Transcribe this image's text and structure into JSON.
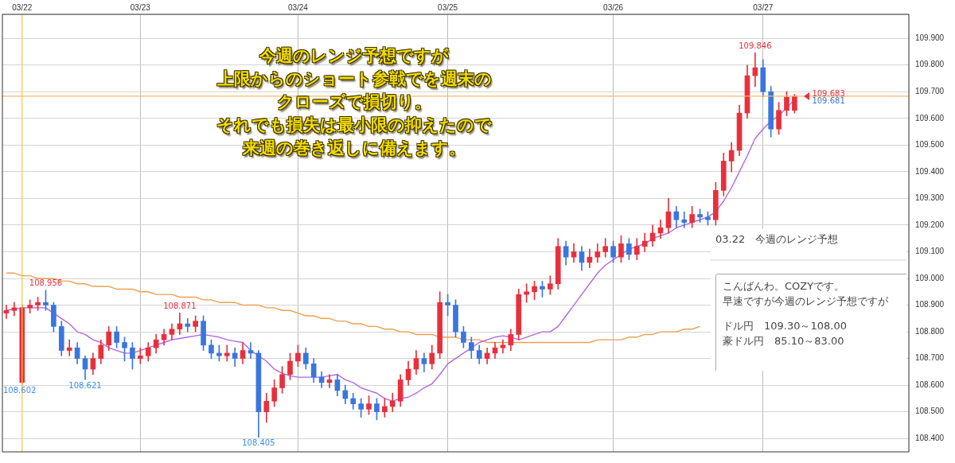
{
  "chart_data": {
    "type": "candlestick",
    "categories": [
      null,
      null,
      "03/22",
      null,
      null,
      null,
      null,
      null,
      null,
      null,
      null,
      null,
      null,
      null,
      null,
      null,
      null,
      "03/23",
      null,
      null,
      null,
      null,
      null,
      null,
      null,
      null,
      null,
      null,
      null,
      null,
      null,
      null,
      null,
      null,
      null,
      null,
      null,
      "03/24",
      null,
      null,
      null,
      null,
      null,
      null,
      null,
      null,
      null,
      null,
      null,
      null,
      null,
      null,
      null,
      null,
      null,
      null,
      "03/25",
      null,
      null,
      null,
      null,
      null,
      null,
      null,
      null,
      null,
      null,
      null,
      null,
      null,
      null,
      null,
      null,
      null,
      null,
      null,
      null,
      "03/26",
      null,
      null,
      null,
      null,
      null,
      null,
      null,
      null,
      null,
      null,
      null,
      null,
      null,
      null,
      null,
      null,
      null,
      null,
      "03/27",
      null,
      null,
      null,
      null,
      null,
      null,
      null,
      null,
      null,
      null,
      null,
      null,
      null,
      null,
      null,
      null,
      null,
      null
    ],
    "ohlc": [
      [
        108.87,
        108.9,
        108.85,
        108.88
      ],
      [
        108.88,
        108.91,
        108.86,
        108.89
      ],
      [
        108.61,
        108.9,
        108.602,
        108.89
      ],
      [
        108.89,
        108.92,
        108.87,
        108.9
      ],
      [
        108.9,
        108.93,
        108.88,
        108.91
      ],
      [
        108.91,
        108.956,
        108.88,
        108.9
      ],
      [
        108.9,
        108.91,
        108.8,
        108.82
      ],
      [
        108.82,
        108.84,
        108.71,
        108.73
      ],
      [
        108.73,
        108.77,
        108.71,
        108.74
      ],
      [
        108.74,
        108.76,
        108.68,
        108.7
      ],
      [
        108.7,
        108.71,
        108.621,
        108.66
      ],
      [
        108.66,
        108.72,
        108.64,
        108.7
      ],
      [
        108.7,
        108.77,
        108.68,
        108.75
      ],
      [
        108.75,
        108.82,
        108.73,
        108.8
      ],
      [
        108.8,
        108.82,
        108.74,
        108.76
      ],
      [
        108.76,
        108.78,
        108.69,
        108.74
      ],
      [
        108.74,
        108.76,
        108.66,
        108.7
      ],
      [
        108.7,
        108.74,
        108.68,
        108.71
      ],
      [
        108.71,
        108.76,
        108.69,
        108.74
      ],
      [
        108.74,
        108.79,
        108.72,
        108.77
      ],
      [
        108.77,
        108.81,
        108.75,
        108.79
      ],
      [
        108.79,
        108.83,
        108.77,
        108.81
      ],
      [
        108.81,
        108.871,
        108.79,
        108.83
      ],
      [
        108.83,
        108.85,
        108.8,
        108.82
      ],
      [
        108.82,
        108.86,
        108.8,
        108.84
      ],
      [
        108.84,
        108.86,
        108.73,
        108.75
      ],
      [
        108.75,
        108.77,
        108.7,
        108.72
      ],
      [
        108.72,
        108.75,
        108.69,
        108.71
      ],
      [
        108.71,
        108.75,
        108.69,
        108.72
      ],
      [
        108.72,
        108.74,
        108.67,
        108.7
      ],
      [
        108.7,
        108.76,
        108.68,
        108.73
      ],
      [
        108.73,
        108.76,
        108.7,
        108.72
      ],
      [
        108.72,
        108.73,
        108.405,
        108.5
      ],
      [
        108.5,
        108.57,
        108.46,
        108.54
      ],
      [
        108.54,
        108.62,
        108.52,
        108.59
      ],
      [
        108.59,
        108.67,
        108.57,
        108.64
      ],
      [
        108.64,
        108.72,
        108.62,
        108.69
      ],
      [
        108.69,
        108.75,
        108.67,
        108.72
      ],
      [
        108.72,
        108.74,
        108.66,
        108.68
      ],
      [
        108.68,
        108.7,
        108.61,
        108.63
      ],
      [
        108.63,
        108.65,
        108.59,
        108.61
      ],
      [
        108.61,
        108.64,
        108.59,
        108.62
      ],
      [
        108.62,
        108.64,
        108.56,
        108.58
      ],
      [
        108.58,
        108.6,
        108.53,
        108.55
      ],
      [
        108.55,
        108.57,
        108.51,
        108.53
      ],
      [
        108.53,
        108.55,
        108.48,
        108.51
      ],
      [
        108.51,
        108.56,
        108.49,
        108.53
      ],
      [
        108.53,
        108.55,
        108.47,
        108.5
      ],
      [
        108.5,
        108.55,
        108.48,
        108.52
      ],
      [
        108.52,
        108.57,
        108.5,
        108.54
      ],
      [
        108.54,
        108.64,
        108.52,
        108.62
      ],
      [
        108.62,
        108.69,
        108.6,
        108.66
      ],
      [
        108.66,
        108.73,
        108.64,
        108.7
      ],
      [
        108.7,
        108.72,
        108.65,
        108.68
      ],
      [
        108.68,
        108.75,
        108.66,
        108.72
      ],
      [
        108.72,
        108.95,
        108.7,
        108.91
      ],
      [
        108.91,
        108.94,
        108.86,
        108.9
      ],
      [
        108.9,
        108.92,
        108.78,
        108.8
      ],
      [
        108.8,
        108.82,
        108.74,
        108.76
      ],
      [
        108.76,
        108.78,
        108.7,
        108.73
      ],
      [
        108.73,
        108.75,
        108.68,
        108.7
      ],
      [
        108.7,
        108.74,
        108.68,
        108.72
      ],
      [
        108.72,
        108.76,
        108.7,
        108.74
      ],
      [
        108.74,
        108.77,
        108.72,
        108.75
      ],
      [
        108.75,
        108.81,
        108.73,
        108.79
      ],
      [
        108.79,
        108.96,
        108.77,
        108.94
      ],
      [
        108.94,
        108.98,
        108.91,
        108.95
      ],
      [
        108.95,
        108.99,
        108.92,
        108.97
      ],
      [
        108.97,
        108.99,
        108.93,
        108.96
      ],
      [
        108.96,
        109.01,
        108.94,
        108.98
      ],
      [
        108.98,
        109.15,
        108.96,
        109.12
      ],
      [
        109.12,
        109.14,
        109.05,
        109.08
      ],
      [
        109.08,
        109.13,
        109.06,
        109.1
      ],
      [
        109.1,
        109.12,
        109.03,
        109.06
      ],
      [
        109.06,
        109.11,
        109.04,
        109.08
      ],
      [
        109.08,
        109.13,
        109.06,
        109.1
      ],
      [
        109.1,
        109.15,
        109.08,
        109.12
      ],
      [
        109.12,
        109.14,
        109.06,
        109.08
      ],
      [
        109.08,
        109.16,
        109.06,
        109.13
      ],
      [
        109.13,
        109.15,
        109.07,
        109.09
      ],
      [
        109.09,
        109.15,
        109.07,
        109.12
      ],
      [
        109.12,
        109.17,
        109.1,
        109.14
      ],
      [
        109.14,
        109.2,
        109.12,
        109.17
      ],
      [
        109.17,
        109.22,
        109.15,
        109.19
      ],
      [
        109.19,
        109.3,
        109.17,
        109.25
      ],
      [
        109.25,
        109.27,
        109.19,
        109.22
      ],
      [
        109.22,
        109.25,
        109.19,
        109.21
      ],
      [
        109.21,
        109.27,
        109.19,
        109.24
      ],
      [
        109.24,
        109.26,
        109.21,
        109.23
      ],
      [
        109.23,
        109.25,
        109.2,
        109.22
      ],
      [
        109.22,
        109.36,
        109.2,
        109.33
      ],
      [
        109.33,
        109.47,
        109.31,
        109.44
      ],
      [
        109.44,
        109.51,
        109.4,
        109.48
      ],
      [
        109.48,
        109.65,
        109.46,
        109.62
      ],
      [
        109.62,
        109.8,
        109.6,
        109.76
      ],
      [
        109.76,
        109.846,
        109.72,
        109.79
      ],
      [
        109.79,
        109.82,
        109.68,
        109.7
      ],
      [
        109.7,
        109.72,
        109.53,
        109.56
      ],
      [
        109.56,
        109.66,
        109.54,
        109.63
      ],
      [
        109.63,
        109.7,
        109.61,
        109.68
      ],
      [
        109.63,
        109.69,
        109.62,
        109.683
      ],
      null,
      null,
      null,
      null,
      null,
      null,
      null,
      null,
      null,
      null,
      null,
      null,
      null,
      null
    ],
    "colors": [
      "#e8303c",
      "#e8303c",
      "#e8303c",
      "#e8303c",
      "#e8303c",
      "#3a76de",
      "#3a76de",
      "#3a76de",
      "#e8303c",
      "#3a76de",
      "#3a76de",
      "#e8303c",
      "#e8303c",
      "#e8303c",
      "#3a76de",
      "#3a76de",
      "#3a76de",
      "#e8303c",
      "#e8303c",
      "#e8303c",
      "#e8303c",
      "#e8303c",
      "#e8303c",
      "#3a76de",
      "#e8303c",
      "#3a76de",
      "#3a76de",
      "#3a76de",
      "#e8303c",
      "#3a76de",
      "#e8303c",
      "#3a76de",
      "#3a76de",
      "#e8303c",
      "#e8303c",
      "#e8303c",
      "#e8303c",
      "#e8303c",
      "#3a76de",
      "#3a76de",
      "#3a76de",
      "#e8303c",
      "#3a76de",
      "#3a76de",
      "#3a76de",
      "#3a76de",
      "#e8303c",
      "#3a76de",
      "#e8303c",
      "#e8303c",
      "#e8303c",
      "#e8303c",
      "#e8303c",
      "#3a76de",
      "#e8303c",
      "#e8303c",
      "#3a76de",
      "#3a76de",
      "#3a76de",
      "#3a76de",
      "#3a76de",
      "#e8303c",
      "#e8303c",
      "#e8303c",
      "#e8303c",
      "#e8303c",
      "#e8303c",
      "#e8303c",
      "#3a76de",
      "#e8303c",
      "#e8303c",
      "#3a76de",
      "#e8303c",
      "#3a76de",
      "#e8303c",
      "#e8303c",
      "#e8303c",
      "#3a76de",
      "#e8303c",
      "#3a76de",
      "#e8303c",
      "#e8303c",
      "#e8303c",
      "#e8303c",
      "#e8303c",
      "#3a76de",
      "#3a76de",
      "#e8303c",
      "#3a76de",
      "#3a76de",
      "#e8303c",
      "#e8303c",
      "#e8303c",
      "#e8303c",
      "#e8303c",
      "#e8303c",
      "#3a76de",
      "#3a76de",
      "#e8303c",
      "#e8303c",
      "#e8303c",
      null,
      null,
      null,
      null,
      null,
      null,
      null,
      null,
      null,
      null,
      null,
      null,
      null,
      null
    ],
    "series": [
      {
        "type": "line",
        "color": "#b366e0",
        "values": [
          108.88,
          108.885,
          108.89,
          108.89,
          108.89,
          108.89,
          108.87,
          108.85,
          108.83,
          108.8,
          108.79,
          108.77,
          108.76,
          108.74,
          108.73,
          108.72,
          108.72,
          108.73,
          108.74,
          108.75,
          108.76,
          108.77,
          108.775,
          108.78,
          108.785,
          108.79,
          108.785,
          108.78,
          108.77,
          108.765,
          108.76,
          108.73,
          108.71,
          108.69,
          108.66,
          108.645,
          108.635,
          108.63,
          108.63,
          108.63,
          108.63,
          108.635,
          108.64,
          108.62,
          108.61,
          108.59,
          108.58,
          108.57,
          108.55,
          108.54,
          108.55,
          108.555,
          108.57,
          108.59,
          108.605,
          108.64,
          108.68,
          108.7,
          108.72,
          108.74,
          108.76,
          108.77,
          108.78,
          108.785,
          108.78,
          108.77,
          108.78,
          108.79,
          108.8,
          108.8,
          108.82,
          108.86,
          108.9,
          108.94,
          108.98,
          109.02,
          109.05,
          109.07,
          109.09,
          109.11,
          109.12,
          109.13,
          109.15,
          109.16,
          109.17,
          109.19,
          109.2,
          109.21,
          109.22,
          109.23,
          109.25,
          109.29,
          109.34,
          109.4,
          109.46,
          109.525,
          109.56,
          109.59,
          109.61,
          109.64,
          109.67,
          null,
          null,
          null,
          null,
          null,
          null,
          null,
          null,
          null,
          null,
          null,
          null,
          null,
          null
        ]
      },
      {
        "type": "line",
        "color": "#f0a050",
        "values": [
          109.02,
          109.02,
          109.01,
          109.01,
          109.0,
          109.0,
          109.0,
          108.99,
          108.99,
          108.98,
          108.98,
          108.97,
          108.97,
          108.97,
          108.96,
          108.96,
          108.96,
          108.95,
          108.95,
          108.94,
          108.94,
          108.94,
          108.93,
          108.93,
          108.93,
          108.92,
          108.92,
          108.91,
          108.91,
          108.91,
          108.9,
          108.9,
          108.9,
          108.89,
          108.89,
          108.88,
          108.88,
          108.87,
          108.86,
          108.86,
          108.85,
          108.85,
          108.84,
          108.84,
          108.83,
          108.83,
          108.82,
          108.82,
          108.81,
          108.81,
          108.8,
          108.8,
          108.79,
          108.79,
          108.79,
          108.78,
          108.78,
          108.78,
          108.77,
          108.77,
          108.77,
          108.76,
          108.76,
          108.76,
          108.76,
          108.76,
          108.76,
          108.76,
          108.76,
          108.76,
          108.76,
          108.76,
          108.76,
          108.76,
          108.76,
          108.77,
          108.77,
          108.77,
          108.77,
          108.78,
          108.78,
          108.79,
          108.79,
          108.8,
          108.8,
          108.8,
          108.81,
          108.81,
          108.82,
          null,
          null,
          null,
          null,
          null,
          null,
          null,
          null,
          null,
          null,
          null,
          null,
          null,
          null,
          null,
          null,
          null,
          null,
          null,
          null,
          null,
          null,
          null,
          null,
          null,
          null
        ]
      }
    ],
    "ylim": [
      108.35,
      109.99
    ],
    "yticks": [
      {
        "value": 108.4,
        "label": "108.400"
      },
      {
        "value": 108.5,
        "label": "108.500"
      },
      {
        "value": 108.6,
        "label": "108.600"
      },
      {
        "value": 108.7,
        "label": "108.700"
      },
      {
        "value": 108.8,
        "label": "108.800"
      },
      {
        "value": 108.9,
        "label": "108.900"
      },
      {
        "value": 109.0,
        "label": "109.000"
      },
      {
        "value": 109.1,
        "label": "109.100"
      },
      {
        "value": 109.2,
        "label": "109.200"
      },
      {
        "value": 109.3,
        "label": "109.300"
      },
      {
        "value": 109.4,
        "label": "109.400"
      },
      {
        "value": 109.5,
        "label": "109.500"
      },
      {
        "value": 109.6,
        "label": "109.600"
      },
      {
        "value": 109.7,
        "label": "109.700"
      },
      {
        "value": 109.8,
        "label": "109.800"
      },
      {
        "value": 109.9,
        "label": "109.900"
      }
    ],
    "grid": true,
    "legend": false,
    "marker": "none",
    "ref_lines": [
      {
        "axis": "y",
        "value": 109.683,
        "label": "109.683",
        "color": "#f5b86a"
      },
      {
        "axis": "x",
        "value": "03/22",
        "color": "#f6d040"
      }
    ],
    "annotations": [
      "今週のレンジ予想ですが",
      "上限からのショート参戦でを週末の",
      "クローズで損切り。",
      "それでも損失は最小限の抑えたので",
      "来週の巻き返しに備えます。",
      "03.22　今週のレンジ予想",
      "こんばんわ。COZYです。",
      "早速ですが今週のレンジ予想ですが",
      "ドル円　109.30～108.00",
      "豪ドル円　85.10～83.00",
      {
        "text": "108.956",
        "y": 108.956
      },
      {
        "text": "108.602",
        "y": 108.602
      },
      {
        "text": "108.621",
        "y": 108.621
      },
      {
        "text": "108.871",
        "y": 108.871
      },
      {
        "text": "108.405",
        "y": 108.405
      },
      {
        "text": "109.846",
        "y": 109.846
      },
      {
        "text": "109.681",
        "y": 109.681
      }
    ]
  }
}
